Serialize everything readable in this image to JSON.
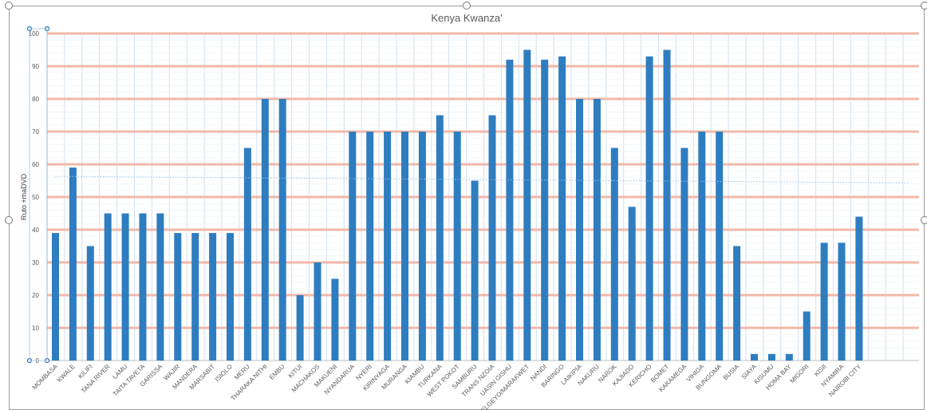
{
  "chart_data": {
    "type": "bar",
    "title": "Kenya Kwanza'",
    "ylabel": "Ruto +maDVD",
    "xlabel": "",
    "ylim": [
      0,
      100
    ],
    "yticks": [
      0,
      10,
      20,
      30,
      40,
      50,
      60,
      70,
      80,
      90,
      100
    ],
    "grid": true,
    "trendline": "linear (dotted)",
    "categories": [
      "MOMBASA",
      "KWALE",
      "KILIFI",
      "TANA RIVER",
      "LAMU",
      "TAITA TAVETA",
      "GARISSA",
      "WAJIR",
      "MANDERA",
      "MARSABIT",
      "ISIOLO",
      "MERU",
      "THARAKA NITHI",
      "EMBU",
      "KITUI",
      "MACHAKOS",
      "MAKUENI",
      "NYANDARUA",
      "NYERI",
      "KIRINYAGA",
      "MURANGA",
      "KIAMBU",
      "TURKANA",
      "WEST POKOT",
      "SAMBURU",
      "TRANS NZOIA",
      "UASIN GISHU",
      "ELGEYO/MARAKWET",
      "NANDI",
      "BARINGO",
      "LAIKIPIA",
      "NAKURU",
      "NAROK",
      "KAJIADO",
      "KERICHO",
      "BOMET",
      "KAKAMEGA",
      "VIHIGA",
      "BUNGOMA",
      "BUSIA",
      "SIAYA",
      "KISUMU",
      "HOMA BAY",
      "MIGORI",
      "KISII",
      "NYAMIRA",
      "NAIROBI CITY"
    ],
    "values": [
      39,
      59,
      35,
      45,
      45,
      45,
      45,
      39,
      39,
      39,
      39,
      65,
      80,
      80,
      20,
      30,
      25,
      70,
      70,
      70,
      70,
      70,
      75,
      70,
      55,
      75,
      92,
      95,
      92,
      93,
      80,
      80,
      65,
      47,
      93,
      95,
      65,
      70,
      70,
      35,
      2,
      2,
      2,
      15,
      36,
      36,
      44
    ],
    "colors": {
      "bar": "#2e7dc0",
      "major_grid": "#f2b8a8",
      "minor_grid": "#cfe0f0",
      "trend": "#9dc3e6"
    }
  }
}
